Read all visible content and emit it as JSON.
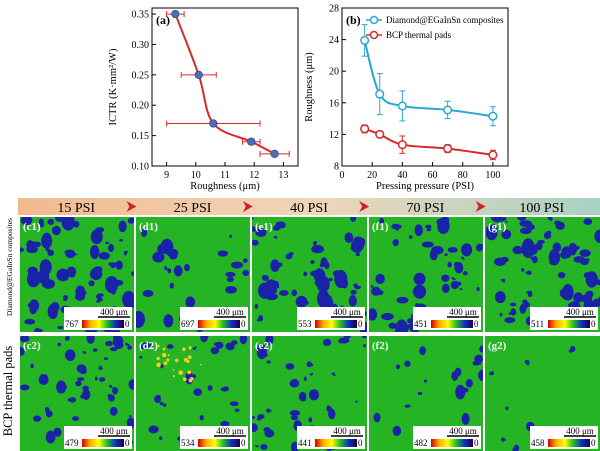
{
  "chart_data": [
    {
      "type": "scatter",
      "label": "(a)",
      "xlabel": "Roughness (μm)",
      "ylabel": "ICTR (K·mm²/W)",
      "xlim": [
        8.5,
        13.5
      ],
      "ylim": [
        0.1,
        0.36
      ],
      "xticks": [
        "9",
        "10",
        "11",
        "12",
        "13"
      ],
      "yticks": [
        "0.10",
        "0.15",
        "0.20",
        "0.25",
        "0.30",
        "0.35"
      ],
      "points": [
        {
          "x": 9.3,
          "y": 0.35,
          "xerr": 0.3
        },
        {
          "x": 10.1,
          "y": 0.25,
          "xerr": 0.6
        },
        {
          "x": 10.6,
          "y": 0.17,
          "xerr": 1.6
        },
        {
          "x": 11.9,
          "y": 0.14,
          "xerr": 0.3
        },
        {
          "x": 12.7,
          "y": 0.12,
          "xerr": 0.5
        }
      ],
      "line_color": "#d62b2b",
      "marker_color": "#4a6fb5"
    },
    {
      "type": "line",
      "label": "(b)",
      "xlabel": "Pressing pressure (PSI)",
      "ylabel": "Roughness (μm)",
      "xlim": [
        0,
        110
      ],
      "ylim": [
        8,
        28
      ],
      "xticks": [
        "0",
        "20",
        "40",
        "60",
        "80",
        "100"
      ],
      "yticks": [
        "8",
        "12",
        "16",
        "20",
        "24",
        "28"
      ],
      "legend_position": "top-right",
      "series": [
        {
          "name": "Diamond@EGaInSn composites",
          "color": "#2aa7d6",
          "x": [
            15,
            25,
            40,
            70,
            100
          ],
          "y": [
            23.9,
            17.1,
            15.6,
            15.1,
            14.3
          ],
          "err": [
            2.0,
            2.6,
            1.9,
            1.1,
            1.2
          ]
        },
        {
          "name": "BCP thermal pads",
          "color": "#d62b2b",
          "x": [
            15,
            25,
            40,
            70,
            100
          ],
          "y": [
            12.7,
            12.0,
            10.7,
            10.2,
            9.4
          ],
          "err": [
            0.5,
            0.4,
            1.1,
            0.5,
            0.6
          ]
        }
      ]
    }
  ],
  "pressures": [
    "15 PSI",
    "25 PSI",
    "40 PSI",
    "70 PSI",
    "100 PSI"
  ],
  "row_labels": {
    "top": "Diamond@EGaInSn composites",
    "bottom": "BCP thermal pads"
  },
  "scale_bar": "400 μm",
  "colorbar_zero": "0",
  "maps": [
    {
      "label": "(c1)",
      "max": "767"
    },
    {
      "label": "(d1)",
      "max": "697"
    },
    {
      "label": "(e1)",
      "max": "553"
    },
    {
      "label": "(f1)",
      "max": "451"
    },
    {
      "label": "(g1)",
      "max": "511"
    },
    {
      "label": "(c2)",
      "max": "479"
    },
    {
      "label": "(d2)",
      "max": "534"
    },
    {
      "label": "(e2)",
      "max": "441"
    },
    {
      "label": "(f2)",
      "max": "482"
    },
    {
      "label": "(g2)",
      "max": "458"
    }
  ],
  "colors": {
    "map_bg": "#24b424",
    "spot": "#1a22a8",
    "arrow": "#cc2222"
  }
}
